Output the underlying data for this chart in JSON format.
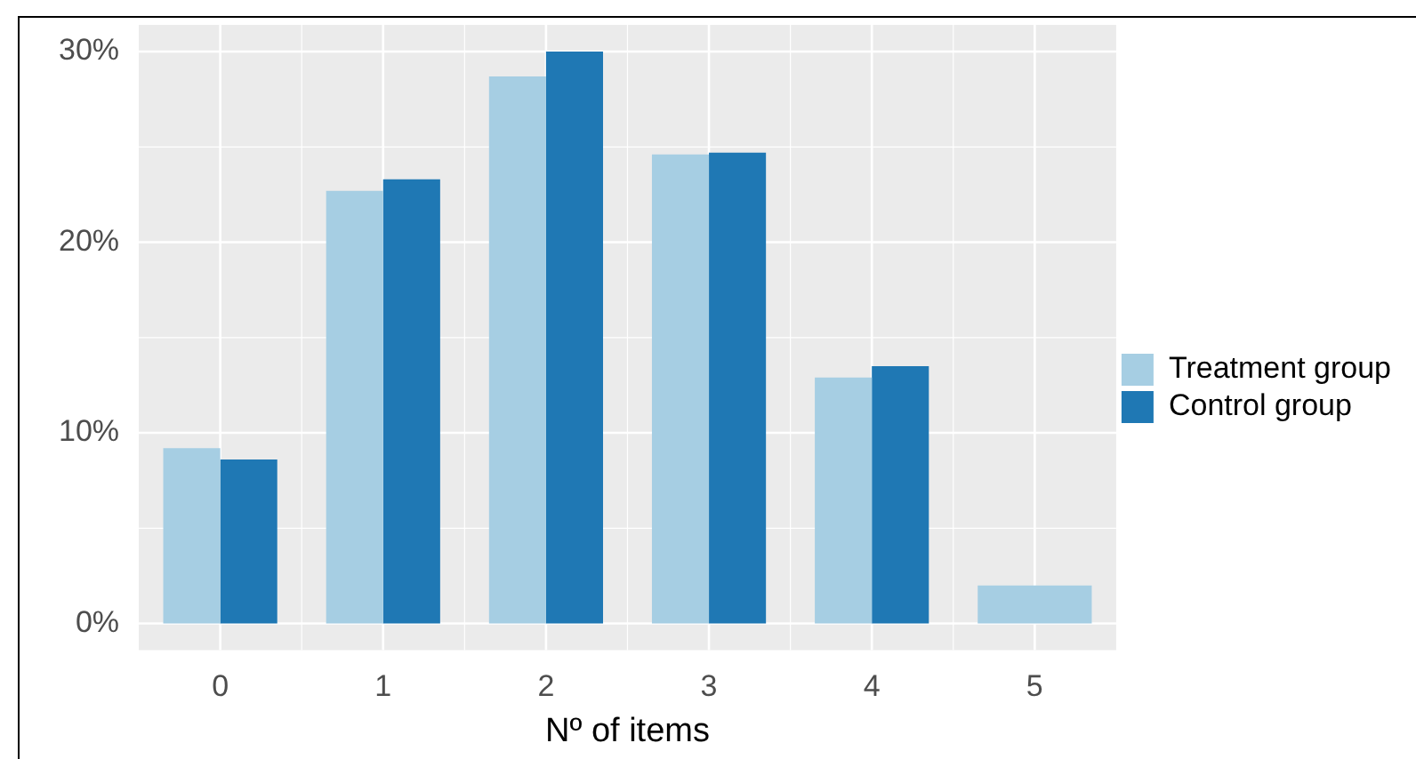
{
  "chart_data": {
    "type": "bar",
    "categories": [
      "0",
      "1",
      "2",
      "3",
      "4",
      "5"
    ],
    "series": [
      {
        "name": "Treatment group",
        "color": "#a6cee3",
        "values": [
          9.2,
          22.7,
          28.7,
          24.6,
          12.9,
          2.0
        ]
      },
      {
        "name": "Control group",
        "color": "#1f78b4",
        "values": [
          8.6,
          23.3,
          30.0,
          24.7,
          13.5,
          null
        ]
      }
    ],
    "xlabel": "Nº of items",
    "ylim": [
      -1.4,
      31.4
    ],
    "yticks": [
      {
        "value": 0,
        "label": "0%"
      },
      {
        "value": 10,
        "label": "10%"
      },
      {
        "value": 20,
        "label": "20%"
      },
      {
        "value": 30,
        "label": "30%"
      }
    ],
    "grid": true,
    "legend": "right"
  }
}
